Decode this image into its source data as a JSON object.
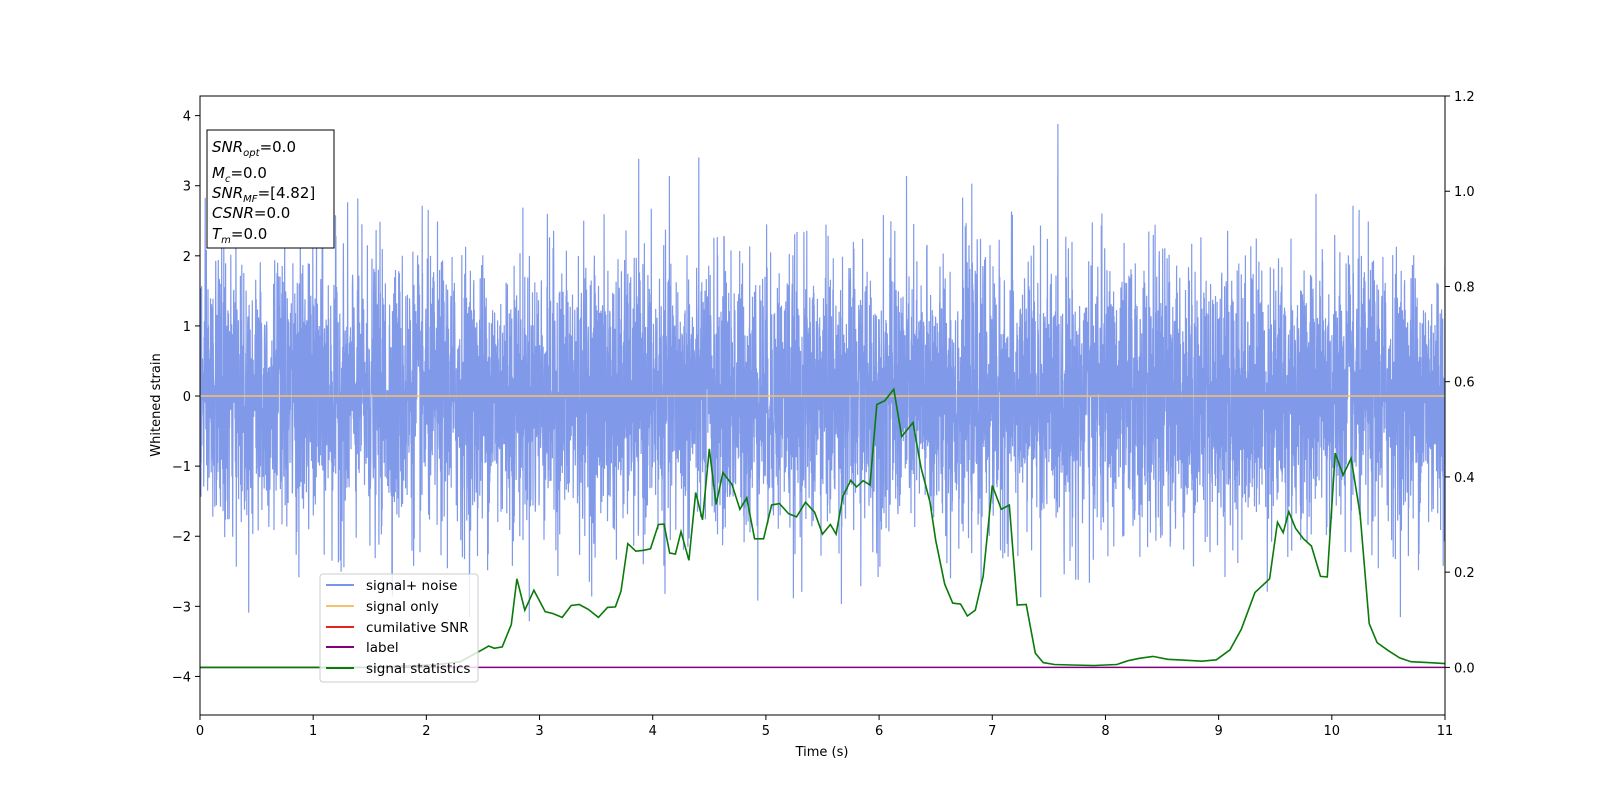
{
  "chart_data": {
    "type": "line",
    "xlabel": "Time (s)",
    "ylabel": "Whitened strain",
    "xlim": [
      0,
      11
    ],
    "ylim_left": [
      -4.55,
      4.28
    ],
    "ylim_right": [
      -0.1,
      1.2
    ],
    "x_ticks": [
      "0",
      "1",
      "2",
      "3",
      "4",
      "5",
      "6",
      "7",
      "8",
      "9",
      "10",
      "11"
    ],
    "y_ticks_left": [
      "−4",
      "−3",
      "−2",
      "−1",
      "0",
      "1",
      "2",
      "3",
      "4"
    ],
    "y_ticks_right": [
      "0.0",
      "0.2",
      "0.4",
      "0.6",
      "0.8",
      "1.0",
      "1.2"
    ],
    "grid": false,
    "legend_position": "lower-left",
    "info_box": {
      "snr_opt": {
        "base": "SNR",
        "sub": "opt",
        "value": "=0.0"
      },
      "mc": {
        "base": "M",
        "sub": "c",
        "value": "=0.0"
      },
      "snr_mf": {
        "base": "SNR",
        "sub": "MF",
        "value": "=[4.82]"
      },
      "csnr": {
        "base": "CSNR",
        "sub": "",
        "value": "=0.0"
      },
      "tm": {
        "base": "T",
        "sub": "m",
        "value": "=0.0"
      }
    },
    "series": [
      {
        "name": "signal+ noise",
        "color": "#7a94e8",
        "axis": "left",
        "kind": "gaussian-noise",
        "noise_std": 0.95,
        "min_approx": -4.0,
        "max_approx": 3.88
      },
      {
        "name": "signal only",
        "color": "#f5c36b",
        "axis": "left",
        "x": [
          0,
          11
        ],
        "y": [
          0,
          0
        ]
      },
      {
        "name": "cumilative SNR",
        "color": "#e8211b",
        "axis": "left",
        "x": [],
        "y": []
      },
      {
        "name": "label",
        "color": "#800080",
        "axis": "right",
        "x": [
          0,
          11
        ],
        "y": [
          0,
          0
        ]
      },
      {
        "name": "signal statistics",
        "color": "#0a7a0a",
        "axis": "right",
        "x": [
          0,
          0.3,
          0.6,
          0.9,
          1.2,
          1.5,
          1.8,
          2.1,
          2.3,
          2.4,
          2.5,
          2.55,
          2.6,
          2.67,
          2.75,
          2.8,
          2.87,
          2.95,
          3.05,
          3.12,
          3.2,
          3.28,
          3.35,
          3.43,
          3.52,
          3.6,
          3.67,
          3.72,
          3.78,
          3.85,
          3.92,
          3.98,
          4.05,
          4.1,
          4.15,
          4.2,
          4.25,
          4.32,
          4.38,
          4.44,
          4.5,
          4.56,
          4.62,
          4.7,
          4.77,
          4.83,
          4.9,
          4.98,
          5.05,
          5.12,
          5.2,
          5.27,
          5.35,
          5.43,
          5.5,
          5.57,
          5.62,
          5.68,
          5.75,
          5.8,
          5.86,
          5.92,
          5.98,
          6.05,
          6.13,
          6.2,
          6.3,
          6.37,
          6.45,
          6.5,
          6.58,
          6.65,
          6.72,
          6.78,
          6.85,
          6.92,
          7.0,
          7.08,
          7.15,
          7.22,
          7.3,
          7.38,
          7.45,
          7.55,
          7.7,
          7.9,
          8.1,
          8.2,
          8.3,
          8.42,
          8.55,
          8.7,
          8.85,
          8.98,
          9.1,
          9.2,
          9.32,
          9.45,
          9.52,
          9.57,
          9.62,
          9.68,
          9.75,
          9.82,
          9.9,
          9.96,
          10.03,
          10.1,
          10.17,
          10.25,
          10.33,
          10.4,
          10.5,
          10.6,
          10.7,
          10.85,
          11.0
        ],
        "y": [
          0.0,
          0.0,
          0.0,
          0.0,
          0.0,
          0.0,
          0.003,
          0.006,
          0.012,
          0.025,
          0.038,
          0.045,
          0.04,
          0.043,
          0.09,
          0.186,
          0.12,
          0.162,
          0.117,
          0.113,
          0.105,
          0.13,
          0.132,
          0.122,
          0.105,
          0.126,
          0.127,
          0.16,
          0.26,
          0.244,
          0.246,
          0.249,
          0.3,
          0.301,
          0.24,
          0.238,
          0.285,
          0.225,
          0.367,
          0.31,
          0.459,
          0.342,
          0.409,
          0.384,
          0.332,
          0.356,
          0.27,
          0.27,
          0.341,
          0.344,
          0.323,
          0.316,
          0.347,
          0.326,
          0.28,
          0.3,
          0.28,
          0.36,
          0.393,
          0.379,
          0.392,
          0.383,
          0.552,
          0.56,
          0.584,
          0.485,
          0.514,
          0.42,
          0.347,
          0.267,
          0.175,
          0.135,
          0.133,
          0.108,
          0.12,
          0.192,
          0.382,
          0.332,
          0.341,
          0.131,
          0.132,
          0.03,
          0.01,
          0.006,
          0.005,
          0.004,
          0.006,
          0.014,
          0.019,
          0.023,
          0.017,
          0.015,
          0.013,
          0.016,
          0.037,
          0.08,
          0.157,
          0.186,
          0.305,
          0.283,
          0.327,
          0.292,
          0.27,
          0.255,
          0.191,
          0.19,
          0.45,
          0.404,
          0.439,
          0.322,
          0.092,
          0.052,
          0.035,
          0.02,
          0.012,
          0.01,
          0.008
        ]
      }
    ]
  }
}
